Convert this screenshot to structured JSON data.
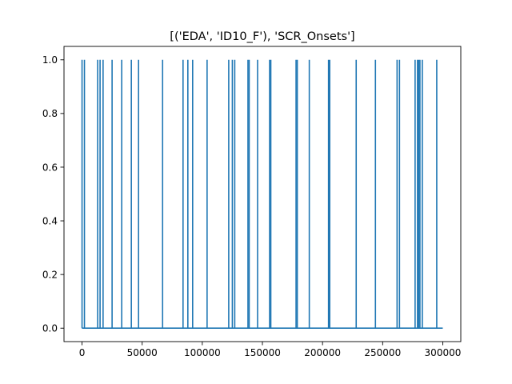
{
  "chart_data": {
    "type": "line",
    "title": "[('EDA', 'ID10_F'), 'SCR_Onsets']",
    "xlabel": "",
    "ylabel": "",
    "xlim": [
      -15000,
      315000
    ],
    "ylim": [
      -0.05,
      1.05
    ],
    "grid": false,
    "x_ticks": [
      0,
      50000,
      100000,
      150000,
      200000,
      250000,
      300000
    ],
    "y_ticks": [
      0.0,
      0.2,
      0.4,
      0.6,
      0.8,
      1.0
    ],
    "x_tick_labels": [
      "0",
      "50000",
      "100000",
      "150000",
      "200000",
      "250000",
      "300000"
    ],
    "y_tick_labels": [
      "0.0",
      "0.2",
      "0.4",
      "0.6",
      "0.8",
      "1.0"
    ],
    "series": [
      {
        "baseline": {
          "x": [
            0,
            300000
          ],
          "y": 0
        },
        "spikes_x": [
          0,
          2000,
          13000,
          15000,
          17500,
          25000,
          33000,
          41000,
          47000,
          67000,
          84000,
          88000,
          92000,
          104000,
          122000,
          125000,
          127000,
          138000,
          139000,
          146000,
          156000,
          157000,
          178000,
          179000,
          189000,
          205000,
          206000,
          228000,
          244000,
          262000,
          264000,
          277000,
          279000,
          280000,
          281000,
          283000,
          295000
        ],
        "spike_y": 1.0
      }
    ]
  }
}
